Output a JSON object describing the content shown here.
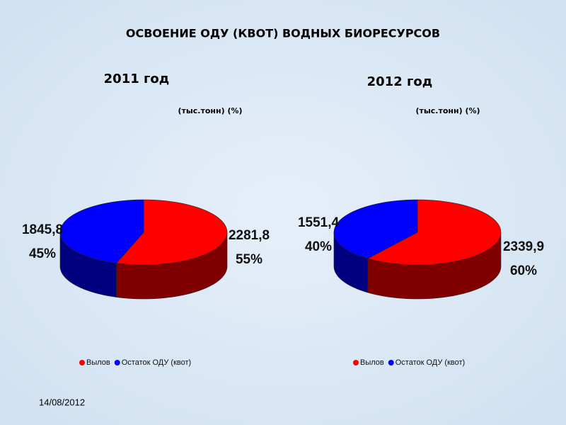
{
  "title": "ОСВОЕНИЕ ОДУ (КВОТ) ВОДНЫХ БИОРЕСУРСОВ",
  "date": "14/08/2012",
  "chart_data": [
    {
      "type": "pie",
      "title": "2011 год",
      "subtitle": "(тыс.тонн) (%)",
      "categories": [
        "Вылов",
        "Остаток ОДУ (квот)"
      ],
      "values": [
        2281.8,
        1845.8
      ],
      "value_labels": [
        "2281,8",
        "1845,8"
      ],
      "percents": [
        55,
        45
      ],
      "percent_labels": [
        "55%",
        "45%"
      ],
      "colors": [
        "#ff0000",
        "#0000ff"
      ]
    },
    {
      "type": "pie",
      "title": "2012 год",
      "subtitle": "(тыс.тонн) (%)",
      "categories": [
        "Вылов",
        "Остаток ОДУ (квот)"
      ],
      "values": [
        2339.9,
        1551.4
      ],
      "value_labels": [
        "2339,9",
        "1551,4"
      ],
      "percents": [
        60,
        40
      ],
      "percent_labels": [
        "60%",
        "40%"
      ],
      "colors": [
        "#ff0000",
        "#0000ff"
      ]
    }
  ]
}
